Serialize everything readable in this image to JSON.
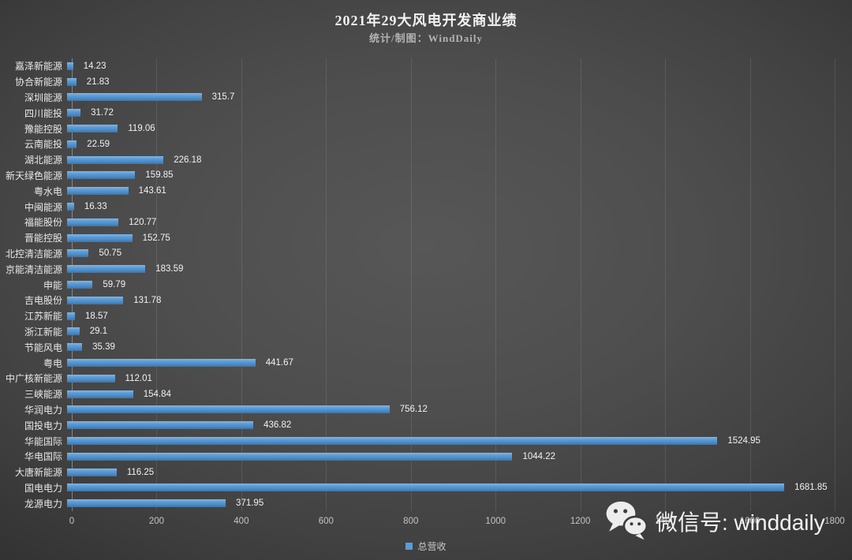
{
  "title": "2021年29大风电开发商业绩",
  "subtitle": "统计/制图：WindDaily",
  "legend": {
    "label": "总营收"
  },
  "watermark": {
    "label": "微信号: winddaily",
    "icon": "wechat-icon"
  },
  "colors": {
    "background_center": "#575757",
    "background_edge": "#2e2e2e",
    "bar": "#5b9bd5",
    "text": "#f2f2f2",
    "axis_text": "#c4c4c4",
    "gridline": "#6a6a6a"
  },
  "chart_data": {
    "type": "bar",
    "orientation": "horizontal",
    "title": "2021年29大风电开发商业绩",
    "subtitle": "统计/制图：WindDaily",
    "series_name": "总营收",
    "categories": [
      "嘉泽新能源",
      "协合新能源",
      "深圳能源",
      "四川能投",
      "豫能控股",
      "云南能投",
      "湖北能源",
      "新天绿色能源",
      "粤水电",
      "中闽能源",
      "福能股份",
      "晋能控股",
      "北控清洁能源",
      "京能清洁能源",
      "申能",
      "吉电股份",
      "江苏新能",
      "浙江新能",
      "节能风电",
      "粤电",
      "中广核新能源",
      "三峡能源",
      "华润电力",
      "国投电力",
      "华能国际",
      "华电国际",
      "大唐新能源",
      "国电电力",
      "龙源电力"
    ],
    "values": [
      14.23,
      21.83,
      315.7,
      31.72,
      119.06,
      22.59,
      226.18,
      159.85,
      143.61,
      16.33,
      120.77,
      152.75,
      50.75,
      183.59,
      59.79,
      131.78,
      18.57,
      29.1,
      35.39,
      441.67,
      112.01,
      154.84,
      756.12,
      436.82,
      1524.95,
      1044.22,
      116.25,
      1681.85,
      371.95
    ],
    "xlim": [
      0,
      1800
    ],
    "x_ticks": [
      0,
      200,
      400,
      600,
      800,
      1000,
      1200,
      1400,
      1600,
      1800
    ],
    "grid": true,
    "legend_position": "bottom",
    "value_labels": true
  }
}
